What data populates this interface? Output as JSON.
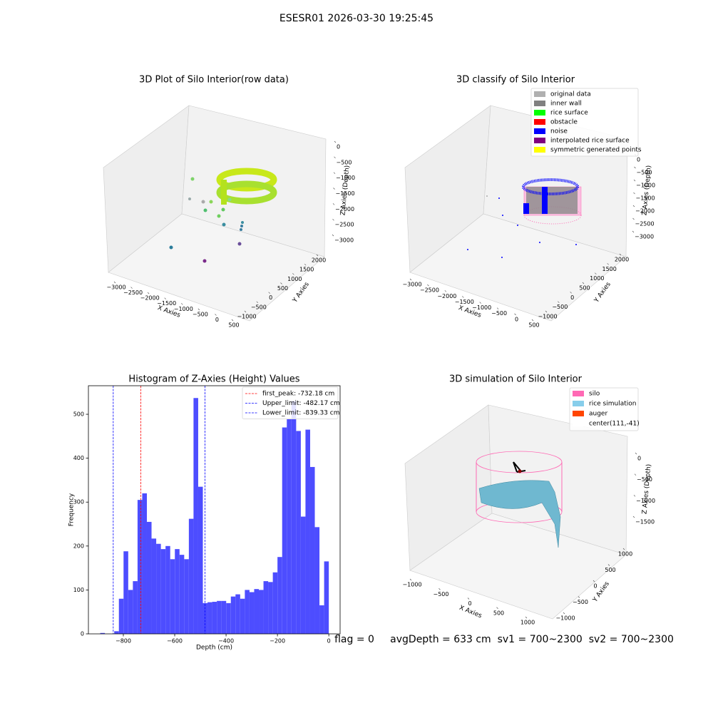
{
  "title": "ESESR01 2026-03-30 19:25:45",
  "status": "flag = 0     avgDepth = 633 cm  sv1 = 700~2300  sv2 = 700~2300",
  "chart_data": [
    {
      "type": "scatter3d",
      "title": "3D Plot of Silo Interior(row data)",
      "xlabel": "X Axies",
      "ylabel": "Y Axies",
      "zlabel": "Z Axies (Depth)",
      "xticks": [
        {
          "value": -3000,
          "label": "−3000"
        },
        {
          "value": -2500,
          "label": "−2500"
        },
        {
          "value": -2000,
          "label": "−2000"
        },
        {
          "value": -1500,
          "label": "−1500"
        },
        {
          "value": -1000,
          "label": "−1000"
        },
        {
          "value": -500,
          "label": "−500"
        },
        0,
        500
      ],
      "yticks": [
        {
          "value": -1000,
          "label": "−1000"
        },
        {
          "value": -500,
          "label": "−500"
        },
        0,
        500,
        1000,
        1500,
        2000
      ],
      "zticks": [
        0,
        {
          "value": -500,
          "label": "−500"
        },
        {
          "value": -1000,
          "label": "−1000"
        },
        {
          "value": -1500,
          "label": "−1500"
        },
        {
          "value": -2000,
          "label": "−2000"
        },
        {
          "value": -2500,
          "label": "−2500"
        },
        {
          "value": -3000,
          "label": "−3000"
        }
      ]
    },
    {
      "type": "scatter3d",
      "title": "3D classify of Silo Interior",
      "xlabel": "X Axies",
      "ylabel": "Y Axies",
      "zlabel": "Z Axies (Depth)",
      "xticks": [
        {
          "value": -3000,
          "label": "−3000"
        },
        {
          "value": -2500,
          "label": "−2500"
        },
        {
          "value": -2000,
          "label": "−2000"
        },
        {
          "value": -1500,
          "label": "−1500"
        },
        {
          "value": -1000,
          "label": "−1000"
        },
        {
          "value": -500,
          "label": "−500"
        },
        0,
        500
      ],
      "yticks": [
        {
          "value": -1000,
          "label": "−1000"
        },
        {
          "value": -500,
          "label": "−500"
        },
        0,
        500,
        1000,
        1500,
        2000
      ],
      "zticks": [
        0,
        {
          "value": -500,
          "label": "−500"
        },
        {
          "value": -1000,
          "label": "−1000"
        },
        {
          "value": -1500,
          "label": "−1500"
        },
        {
          "value": -2000,
          "label": "−2000"
        },
        {
          "value": -2500,
          "label": "−2500"
        },
        {
          "value": -3000,
          "label": "−3000"
        }
      ],
      "legend": [
        {
          "name": "original data",
          "color": "#b0b0b0"
        },
        {
          "name": "inner wall",
          "color": "#808080"
        },
        {
          "name": "rice surface",
          "color": "#00ff00"
        },
        {
          "name": "obstacle",
          "color": "#ff0000"
        },
        {
          "name": "noise",
          "color": "#0000ff"
        },
        {
          "name": "interpolated rice surface",
          "color": "#800080"
        },
        {
          "name": "symmetric generated points",
          "color": "#ffff00"
        }
      ]
    },
    {
      "type": "histogram",
      "title": "Histogram of Z-Axies (Height) Values",
      "xlabel": "Depth (cm)",
      "ylabel": "Frequency",
      "color": "#4d4dff",
      "bins": [
        -890,
        -871.84,
        -853.67,
        -835.51,
        -817.35,
        -799.18,
        -781.02,
        -762.86,
        -744.69,
        -726.53,
        -708.37,
        -690.2,
        -672.04,
        -653.88,
        -635.71,
        -617.55,
        -599.39,
        -581.22,
        -563.06,
        -544.9,
        -526.73,
        -508.57,
        -490.41,
        -472.24,
        -454.08,
        -435.92,
        -417.76,
        -399.59,
        -381.43,
        -363.27,
        -345.1,
        -326.94,
        -308.78,
        -290.61,
        -272.45,
        -254.29,
        -236.12,
        -217.96,
        -199.8,
        -181.63,
        -163.47,
        -145.31,
        -127.14,
        -108.98,
        -90.82,
        -72.65,
        -54.49,
        -36.33,
        -18.16,
        0
      ],
      "counts": [
        2,
        0,
        0,
        6,
        80,
        188,
        100,
        120,
        305,
        320,
        255,
        217,
        205,
        193,
        200,
        170,
        193,
        180,
        170,
        262,
        537,
        335,
        70,
        72,
        73,
        75,
        75,
        70,
        85,
        90,
        80,
        100,
        95,
        102,
        100,
        120,
        118,
        140,
        175,
        470,
        490,
        530,
        462,
        267,
        465,
        380,
        243,
        65,
        165
      ],
      "xlim": [
        -936,
        44
      ],
      "ylim": [
        0,
        565
      ],
      "xticks": [
        {
          "value": -800,
          "label": "−800"
        },
        {
          "value": -600,
          "label": "−600"
        },
        {
          "value": -400,
          "label": "−400"
        },
        {
          "value": -200,
          "label": "−200"
        },
        0
      ],
      "yticks": [
        0,
        100,
        200,
        300,
        400,
        500
      ],
      "vlines": [
        {
          "name": "first_peak: -732.18 cm",
          "value": -732.18,
          "color": "#ff0000"
        },
        {
          "name": "Upper_limit: -482.17 cm",
          "value": -482.17,
          "color": "#0000ff"
        },
        {
          "name": "Lower_limit: -839.33 cm",
          "value": -839.33,
          "color": "#0000ff"
        }
      ],
      "legend_loc": "upper right"
    },
    {
      "type": "surface3d",
      "title": "3D simulation of Silo Interior",
      "xlabel": "X Axies",
      "ylabel": "Y Axies",
      "zlabel": "Z Axies (Depth)",
      "xticks": [
        {
          "value": -1000,
          "label": "−1000"
        },
        {
          "value": -500,
          "label": "−500"
        },
        0,
        500,
        1000
      ],
      "yticks": [
        {
          "value": -1000,
          "label": "−1000"
        },
        {
          "value": -500,
          "label": "−500"
        },
        0,
        500,
        1000
      ],
      "zticks": [
        0,
        {
          "value": -500,
          "label": "−500"
        },
        {
          "value": -1000,
          "label": "−1000"
        },
        {
          "value": -1500,
          "label": "−1500"
        }
      ],
      "legend": [
        {
          "name": "silo",
          "color": "#ff69b4"
        },
        {
          "name": "rice simulation",
          "color": "#87ceeb"
        },
        {
          "name": "auger",
          "color": "#ff4500"
        },
        {
          "name": "center(111,-41)",
          "color": "#ffffff"
        }
      ]
    }
  ]
}
